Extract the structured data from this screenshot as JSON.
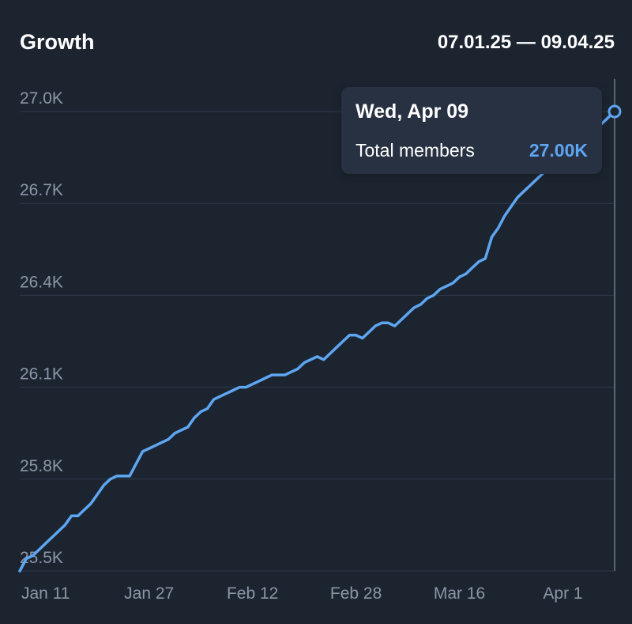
{
  "header": {
    "title": "Growth",
    "date_range": "07.01.25 — 09.04.25"
  },
  "tooltip": {
    "date": "Wed, Apr 09",
    "label": "Total members",
    "value": "27.00K"
  },
  "colors": {
    "background": "#1c2430",
    "line": "#5ea6f2",
    "grid": "#2f3a4a",
    "axis_text": "#8b96a6",
    "tooltip_bg": "#273142"
  },
  "chart_data": {
    "type": "line",
    "title": "Growth",
    "ylim": [
      25.5,
      27.0
    ],
    "y_ticks": [
      25.5,
      25.8,
      26.1,
      26.4,
      26.7,
      27.0
    ],
    "y_tick_labels": [
      "25.5K",
      "25.8K",
      "26.1K",
      "26.4K",
      "26.7K",
      "27.0K"
    ],
    "x_ticks": [
      "2025-01-11",
      "2025-01-27",
      "2025-02-12",
      "2025-02-28",
      "2025-03-16",
      "2025-04-01"
    ],
    "x_tick_labels": [
      "Jan 11",
      "Jan 27",
      "Feb 12",
      "Feb 28",
      "Mar 16",
      "Apr 1"
    ],
    "grid": true,
    "series": [
      {
        "name": "Total members",
        "x": [
          "2025-01-07",
          "2025-01-08",
          "2025-01-09",
          "2025-01-10",
          "2025-01-11",
          "2025-01-12",
          "2025-01-13",
          "2025-01-14",
          "2025-01-15",
          "2025-01-16",
          "2025-01-17",
          "2025-01-18",
          "2025-01-19",
          "2025-01-20",
          "2025-01-21",
          "2025-01-22",
          "2025-01-23",
          "2025-01-24",
          "2025-01-25",
          "2025-01-26",
          "2025-01-27",
          "2025-01-28",
          "2025-01-29",
          "2025-01-30",
          "2025-01-31",
          "2025-02-01",
          "2025-02-02",
          "2025-02-03",
          "2025-02-04",
          "2025-02-05",
          "2025-02-06",
          "2025-02-07",
          "2025-02-08",
          "2025-02-09",
          "2025-02-10",
          "2025-02-11",
          "2025-02-12",
          "2025-02-13",
          "2025-02-14",
          "2025-02-15",
          "2025-02-16",
          "2025-02-17",
          "2025-02-18",
          "2025-02-19",
          "2025-02-20",
          "2025-02-21",
          "2025-02-22",
          "2025-02-23",
          "2025-02-24",
          "2025-02-25",
          "2025-02-26",
          "2025-02-27",
          "2025-02-28",
          "2025-03-01",
          "2025-03-02",
          "2025-03-03",
          "2025-03-04",
          "2025-03-05",
          "2025-03-06",
          "2025-03-07",
          "2025-03-08",
          "2025-03-09",
          "2025-03-10",
          "2025-03-11",
          "2025-03-12",
          "2025-03-13",
          "2025-03-14",
          "2025-03-15",
          "2025-03-16",
          "2025-03-17",
          "2025-03-18",
          "2025-03-19",
          "2025-03-20",
          "2025-03-21",
          "2025-03-22",
          "2025-03-23",
          "2025-03-24",
          "2025-03-25",
          "2025-03-26",
          "2025-03-27",
          "2025-03-28",
          "2025-03-29",
          "2025-03-30",
          "2025-03-31",
          "2025-04-01",
          "2025-04-02",
          "2025-04-03",
          "2025-04-04",
          "2025-04-05",
          "2025-04-06",
          "2025-04-07",
          "2025-04-08",
          "2025-04-09"
        ],
        "y": [
          25.5,
          25.54,
          25.55,
          25.57,
          25.59,
          25.61,
          25.63,
          25.65,
          25.68,
          25.68,
          25.7,
          25.72,
          25.75,
          25.78,
          25.8,
          25.81,
          25.81,
          25.81,
          25.85,
          25.89,
          25.9,
          25.91,
          25.92,
          25.93,
          25.95,
          25.96,
          25.97,
          26.0,
          26.02,
          26.03,
          26.06,
          26.07,
          26.08,
          26.09,
          26.1,
          26.1,
          26.11,
          26.12,
          26.13,
          26.14,
          26.14,
          26.14,
          26.15,
          26.16,
          26.18,
          26.19,
          26.2,
          26.19,
          26.21,
          26.23,
          26.25,
          26.27,
          26.27,
          26.26,
          26.28,
          26.3,
          26.31,
          26.31,
          26.3,
          26.32,
          26.34,
          26.36,
          26.37,
          26.39,
          26.4,
          26.42,
          26.43,
          26.44,
          26.46,
          26.47,
          26.49,
          26.51,
          26.52,
          26.59,
          26.62,
          26.66,
          26.69,
          26.72,
          26.74,
          26.76,
          26.78,
          26.8,
          26.82,
          26.84,
          26.86,
          26.88,
          26.89,
          26.91,
          26.93,
          26.95,
          26.96,
          26.98,
          27.0
        ]
      }
    ]
  }
}
